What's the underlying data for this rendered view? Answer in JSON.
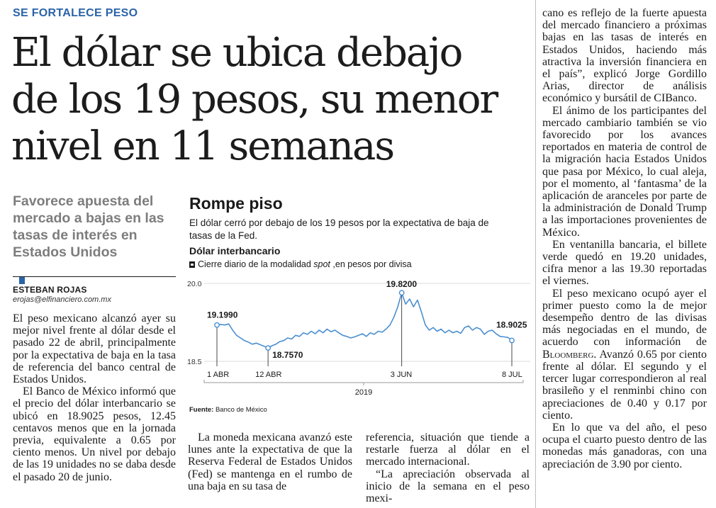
{
  "kicker": "SE FORTALECE PESO",
  "headline": {
    "line1": "El dólar se ubica debajo",
    "line2": "de los 19 pesos, su menor",
    "line3": "nivel en 11 semanas"
  },
  "deck": "Favorece apuesta del mercado a bajas en las tasas de interés en Estados Unidos",
  "byline": {
    "name": "ESTEBAN ROJAS",
    "email": "erojas@elfinanciero.com.mx"
  },
  "article": {
    "col1": [
      "El peso mexicano alcanzó ayer su mejor nivel frente al dólar desde el pasado 22 de abril, principalmente por la expectativa de baja en la tasa de referencia del banco central de Estados Unidos.",
      "El Banco de México informó que el precio del dólar interbancario se ubicó en 18.9025 pesos, 12.45 centavos menos que en la jornada previa, equivalente a 0.65 por ciento menos. Un nivel por debajo de las 19 unidades no se daba desde el pasado 20 de junio."
    ],
    "col2": [
      "La moneda mexicana avanzó este lunes ante la expectativa de que la Reserva Federal de Estados Unidos (Fed) se mantenga en el rumbo de una baja en su tasa de"
    ],
    "col3": [
      "referencia, situación que tiende a restarle fuerza al dólar en el mercado internacional.",
      "“La apreciación observada al inicio de la semana en el peso mexi-"
    ],
    "col4": [
      "cano es reflejo de la fuerte apuesta del mercado financiero a próximas bajas en las tasas de interés en Estados Unidos, haciendo más atractiva la inversión financiera en el país”, explicó Jorge Gordillo Arias, director de análisis económico y bursátil de CIBanco.",
      "El ánimo de los participantes del mercado cambiario también se vio favorecido por los avances reportados en materia de control de la migración hacia Estados Unidos que pasa por México, lo cual aleja, por el momento, al ‘fantasma’ de la aplicación de aranceles por parte de la administración de Donald Trump a las importaciones provenientes de México.",
      "En ventanilla bancaria, el billete verde quedó en 19.20 unidades, cifra menor a las 19.30 reportadas el viernes.",
      "El peso mexicano ocupó ayer el primer puesto como la de mejor desempeño dentro de las divisas más negociadas en el mundo, de acuerdo con información de Bloomberg. Avanzó 0.65 por ciento frente al dólar. El segundo y el tercer lugar correspondieron al real brasileño y el renminbi chino con apreciaciones de 0.40 y 0.17 por ciento.",
      "En lo que va del año, el peso ocupa el cuarto puesto dentro de las monedas más ganadoras, con una apreciación de 3.90 por ciento."
    ]
  },
  "chart": {
    "title": "Rompe piso",
    "subtitle": "El dólar cerró por debajo de los 19 pesos por la expectativa de baja de tasas de la Fed.",
    "header": "Dólar interbancario",
    "legend_prefix": "Cierre diario de la modalidad ",
    "legend_italic": "spot",
    "legend_suffix": " ,en pesos por divisa",
    "source_label": "Fuente:",
    "source_text": " Banco de México"
  },
  "chart_data": {
    "type": "line",
    "ylim": [
      18.5,
      20.0
    ],
    "yticks": [
      "20.0",
      "18.5"
    ],
    "xticks": [
      "1 ABR",
      "12 ABR",
      "3 JUN",
      "8 JUL"
    ],
    "year_label": "2019",
    "annotations": [
      {
        "label": "19.1990",
        "x": "1 ABR",
        "y": 19.199
      },
      {
        "label": "18.7570",
        "x": "12 ABR",
        "y": 18.757
      },
      {
        "label": "19.8200",
        "x": "3 JUN",
        "y": 19.82
      },
      {
        "label": "18.9025",
        "x": "8 JUL",
        "y": 18.9025
      }
    ],
    "series": [
      {
        "color": "#4a8fd0",
        "values": [
          19.199,
          19.21,
          19.2,
          19.22,
          19.1,
          19.0,
          18.95,
          18.9,
          18.87,
          18.83,
          18.85,
          18.82,
          18.79,
          18.757,
          18.8,
          18.83,
          18.88,
          18.9,
          18.95,
          18.93,
          19.0,
          18.98,
          19.05,
          19.02,
          19.08,
          19.03,
          19.1,
          19.05,
          19.12,
          19.07,
          19.1,
          19.05,
          19.0,
          18.98,
          18.95,
          18.97,
          19.0,
          19.03,
          18.98,
          19.05,
          19.02,
          19.08,
          19.06,
          19.12,
          19.2,
          19.35,
          19.55,
          19.82,
          19.6,
          19.7,
          19.55,
          19.68,
          19.45,
          19.2,
          19.1,
          19.15,
          19.08,
          19.12,
          19.05,
          19.1,
          19.05,
          19.08,
          19.04,
          19.15,
          19.18,
          19.1,
          19.15,
          19.12,
          19.02,
          19.08,
          19.1,
          19.03,
          18.98,
          18.97,
          18.96,
          18.9025
        ]
      }
    ]
  }
}
